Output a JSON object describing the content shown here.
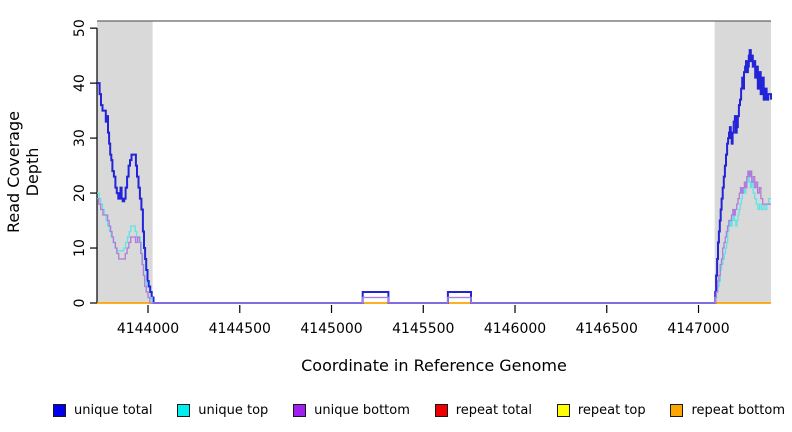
{
  "chart_data": {
    "type": "line",
    "title": "",
    "xlabel": "Coordinate in Reference Genome",
    "ylabel": "Read Coverage Depth",
    "xlim": [
      4143722,
      4147395
    ],
    "ylim": [
      0,
      51.3
    ],
    "xticks": [
      4144000,
      4144500,
      4145000,
      4145500,
      4146000,
      4146500,
      4147000
    ],
    "yticks": [
      0,
      10,
      20,
      30,
      40,
      50
    ],
    "grid": "off",
    "legend_position": "bottom",
    "interpolation": "step",
    "shade_color": "#d9d9d9",
    "border_color": "#666666",
    "shaded_regions": [
      {
        "x0": 4143722,
        "x1": 4144025
      },
      {
        "x0": 4147088,
        "x1": 4147395
      }
    ],
    "series": [
      {
        "name": "repeat total",
        "color": "#dd0000",
        "width": 1.2,
        "points": [
          [
            4143722,
            0
          ],
          [
            4147395,
            0
          ]
        ]
      },
      {
        "name": "repeat top",
        "color": "#ffff00",
        "width": 1.2,
        "points": [
          [
            4143722,
            0
          ],
          [
            4147395,
            0
          ]
        ]
      },
      {
        "name": "repeat bottom",
        "color": "#ffa500",
        "width": 1.6,
        "points": [
          [
            4143722,
            0
          ],
          [
            4147395,
            0
          ]
        ]
      },
      {
        "name": "unique total",
        "color": "#2323d8",
        "width": 2,
        "points": [
          [
            4143722,
            40
          ],
          [
            4143736,
            38
          ],
          [
            4143744,
            36
          ],
          [
            4143752,
            35
          ],
          [
            4143764,
            35
          ],
          [
            4143770,
            33
          ],
          [
            4143776,
            34
          ],
          [
            4143782,
            31
          ],
          [
            4143788,
            29
          ],
          [
            4143794,
            27
          ],
          [
            4143800,
            26
          ],
          [
            4143806,
            24
          ],
          [
            4143814,
            23
          ],
          [
            4143822,
            21
          ],
          [
            4143830,
            20
          ],
          [
            4143838,
            19
          ],
          [
            4143845,
            20
          ],
          [
            4143850,
            21
          ],
          [
            4143856,
            19
          ],
          [
            4143862,
            18.5
          ],
          [
            4143870,
            19
          ],
          [
            4143878,
            21
          ],
          [
            4143886,
            23
          ],
          [
            4143894,
            25
          ],
          [
            4143902,
            26
          ],
          [
            4143910,
            27
          ],
          [
            4143926,
            27
          ],
          [
            4143934,
            25
          ],
          [
            4143940,
            23
          ],
          [
            4143948,
            21
          ],
          [
            4143956,
            19
          ],
          [
            4143964,
            17
          ],
          [
            4143972,
            13
          ],
          [
            4143978,
            10
          ],
          [
            4143984,
            8
          ],
          [
            4143990,
            6
          ],
          [
            4143997,
            4
          ],
          [
            4144004,
            3
          ],
          [
            4144012,
            2
          ],
          [
            4144020,
            1
          ],
          [
            4144030,
            0
          ],
          [
            4145168,
            0
          ],
          [
            4145170,
            2
          ],
          [
            4145308,
            2
          ],
          [
            4145310,
            0
          ],
          [
            4145632,
            0
          ],
          [
            4145634,
            2
          ],
          [
            4145758,
            2
          ],
          [
            4145760,
            0
          ],
          [
            4147086,
            0
          ],
          [
            4147091,
            2
          ],
          [
            4147096,
            5
          ],
          [
            4147101,
            8
          ],
          [
            4147106,
            11
          ],
          [
            4147111,
            13
          ],
          [
            4147116,
            15
          ],
          [
            4147121,
            17
          ],
          [
            4147126,
            19
          ],
          [
            4147132,
            21
          ],
          [
            4147138,
            23
          ],
          [
            4147144,
            25
          ],
          [
            4147150,
            27
          ],
          [
            4147156,
            29
          ],
          [
            4147161,
            30
          ],
          [
            4147166,
            31
          ],
          [
            4147171,
            32
          ],
          [
            4147176,
            30
          ],
          [
            4147181,
            29
          ],
          [
            4147186,
            31
          ],
          [
            4147192,
            33
          ],
          [
            4147198,
            34
          ],
          [
            4147203,
            31
          ],
          [
            4147208,
            32
          ],
          [
            4147214,
            34
          ],
          [
            4147220,
            36
          ],
          [
            4147226,
            37
          ],
          [
            4147232,
            39
          ],
          [
            4147238,
            41
          ],
          [
            4147243,
            39
          ],
          [
            4147248,
            42
          ],
          [
            4147254,
            43
          ],
          [
            4147259,
            44
          ],
          [
            4147264,
            42
          ],
          [
            4147269,
            43
          ],
          [
            4147274,
            45
          ],
          [
            4147279,
            46
          ],
          [
            4147285,
            44
          ],
          [
            4147290,
            45
          ],
          [
            4147296,
            43
          ],
          [
            4147302,
            44
          ],
          [
            4147309,
            41
          ],
          [
            4147316,
            43
          ],
          [
            4147323,
            39
          ],
          [
            4147331,
            42
          ],
          [
            4147339,
            38
          ],
          [
            4147347,
            41
          ],
          [
            4147355,
            37
          ],
          [
            4147363,
            39
          ],
          [
            4147371,
            37
          ],
          [
            4147380,
            38
          ],
          [
            4147395,
            37
          ]
        ]
      },
      {
        "name": "unique top",
        "color": "#62e3e3",
        "width": 1.3,
        "points": [
          [
            4143722,
            20
          ],
          [
            4143734,
            19
          ],
          [
            4143742,
            18
          ],
          [
            4143752,
            17
          ],
          [
            4143762,
            16
          ],
          [
            4143772,
            15
          ],
          [
            4143780,
            14
          ],
          [
            4143790,
            13
          ],
          [
            4143800,
            12
          ],
          [
            4143810,
            11
          ],
          [
            4143820,
            10
          ],
          [
            4143832,
            9.5
          ],
          [
            4143856,
            9.5
          ],
          [
            4143868,
            10
          ],
          [
            4143878,
            11
          ],
          [
            4143888,
            12
          ],
          [
            4143898,
            13
          ],
          [
            4143906,
            14
          ],
          [
            4143922,
            14
          ],
          [
            4143930,
            13
          ],
          [
            4143938,
            12
          ],
          [
            4143950,
            12
          ],
          [
            4143958,
            11
          ],
          [
            4143964,
            9
          ],
          [
            4143970,
            7
          ],
          [
            4143977,
            5
          ],
          [
            4143984,
            4
          ],
          [
            4143991,
            2
          ],
          [
            4144000,
            1
          ],
          [
            4144012,
            1
          ],
          [
            4144022,
            0
          ],
          [
            4145168,
            0
          ],
          [
            4145170,
            1
          ],
          [
            4145308,
            1
          ],
          [
            4145310,
            0
          ],
          [
            4145632,
            0
          ],
          [
            4145634,
            1
          ],
          [
            4145758,
            1
          ],
          [
            4145760,
            0
          ],
          [
            4147086,
            0
          ],
          [
            4147092,
            1
          ],
          [
            4147098,
            2
          ],
          [
            4147105,
            3
          ],
          [
            4147112,
            4
          ],
          [
            4147119,
            6
          ],
          [
            4147126,
            7
          ],
          [
            4147133,
            8
          ],
          [
            4147140,
            9
          ],
          [
            4147147,
            10
          ],
          [
            4147153,
            11
          ],
          [
            4147159,
            13
          ],
          [
            4147165,
            14
          ],
          [
            4147171,
            15
          ],
          [
            4147177,
            14
          ],
          [
            4147183,
            15
          ],
          [
            4147189,
            16
          ],
          [
            4147196,
            15
          ],
          [
            4147203,
            14
          ],
          [
            4147209,
            15
          ],
          [
            4147215,
            16
          ],
          [
            4147221,
            17
          ],
          [
            4147227,
            18
          ],
          [
            4147233,
            19
          ],
          [
            4147239,
            20
          ],
          [
            4147245,
            21
          ],
          [
            4147251,
            20
          ],
          [
            4147257,
            21
          ],
          [
            4147263,
            22
          ],
          [
            4147269,
            23
          ],
          [
            4147276,
            22
          ],
          [
            4147283,
            21
          ],
          [
            4147290,
            22
          ],
          [
            4147298,
            20
          ],
          [
            4147306,
            19
          ],
          [
            4147315,
            18
          ],
          [
            4147324,
            17
          ],
          [
            4147333,
            18
          ],
          [
            4147342,
            17
          ],
          [
            4147352,
            18
          ],
          [
            4147362,
            17
          ],
          [
            4147372,
            18
          ],
          [
            4147382,
            19
          ],
          [
            4147395,
            19
          ]
        ]
      },
      {
        "name": "unique bottom",
        "color": "#b07bdd",
        "width": 1.3,
        "points": [
          [
            4143722,
            19
          ],
          [
            4143732,
            18
          ],
          [
            4143742,
            17
          ],
          [
            4143754,
            16
          ],
          [
            4143770,
            16
          ],
          [
            4143780,
            15
          ],
          [
            4143788,
            14
          ],
          [
            4143796,
            13
          ],
          [
            4143804,
            12
          ],
          [
            4143812,
            11
          ],
          [
            4143822,
            10
          ],
          [
            4143830,
            9
          ],
          [
            4143840,
            8
          ],
          [
            4143864,
            8
          ],
          [
            4143876,
            9
          ],
          [
            4143886,
            10
          ],
          [
            4143896,
            11
          ],
          [
            4143906,
            12
          ],
          [
            4143924,
            12
          ],
          [
            4143932,
            11
          ],
          [
            4143942,
            12
          ],
          [
            4143952,
            11
          ],
          [
            4143960,
            9
          ],
          [
            4143968,
            7
          ],
          [
            4143975,
            5
          ],
          [
            4143982,
            3
          ],
          [
            4143990,
            2
          ],
          [
            4144000,
            1
          ],
          [
            4144010,
            0
          ],
          [
            4145168,
            0
          ],
          [
            4145170,
            1
          ],
          [
            4145308,
            1
          ],
          [
            4145310,
            0
          ],
          [
            4145632,
            0
          ],
          [
            4145634,
            1
          ],
          [
            4145758,
            1
          ],
          [
            4145760,
            0
          ],
          [
            4147086,
            0
          ],
          [
            4147091,
            1
          ],
          [
            4147097,
            2
          ],
          [
            4147104,
            4
          ],
          [
            4147111,
            5
          ],
          [
            4147118,
            7
          ],
          [
            4147125,
            8
          ],
          [
            4147132,
            10
          ],
          [
            4147139,
            11
          ],
          [
            4147146,
            12
          ],
          [
            4147152,
            13
          ],
          [
            4147158,
            14
          ],
          [
            4147165,
            15
          ],
          [
            4147173,
            15
          ],
          [
            4147180,
            16
          ],
          [
            4147187,
            17
          ],
          [
            4147194,
            16
          ],
          [
            4147201,
            17
          ],
          [
            4147208,
            18
          ],
          [
            4147215,
            19
          ],
          [
            4147222,
            20
          ],
          [
            4147229,
            21
          ],
          [
            4147236,
            20
          ],
          [
            4147243,
            21
          ],
          [
            4147250,
            22
          ],
          [
            4147257,
            21
          ],
          [
            4147263,
            23
          ],
          [
            4147269,
            24
          ],
          [
            4147276,
            23
          ],
          [
            4147283,
            24
          ],
          [
            4147290,
            22
          ],
          [
            4147298,
            23
          ],
          [
            4147306,
            21
          ],
          [
            4147314,
            22
          ],
          [
            4147322,
            20
          ],
          [
            4147331,
            21
          ],
          [
            4147340,
            19
          ],
          [
            4147350,
            18
          ],
          [
            4147362,
            18
          ],
          [
            4147374,
            18
          ],
          [
            4147395,
            18
          ]
        ]
      }
    ]
  },
  "legend": {
    "items": [
      {
        "label": "unique total",
        "color": "#0000ee"
      },
      {
        "label": "unique top",
        "color": "#00eeee"
      },
      {
        "label": "unique bottom",
        "color": "#a020f0"
      },
      {
        "label": "repeat total",
        "color": "#ee0000"
      },
      {
        "label": "repeat top",
        "color": "#ffff00"
      },
      {
        "label": "repeat bottom",
        "color": "#ffa500"
      }
    ]
  }
}
